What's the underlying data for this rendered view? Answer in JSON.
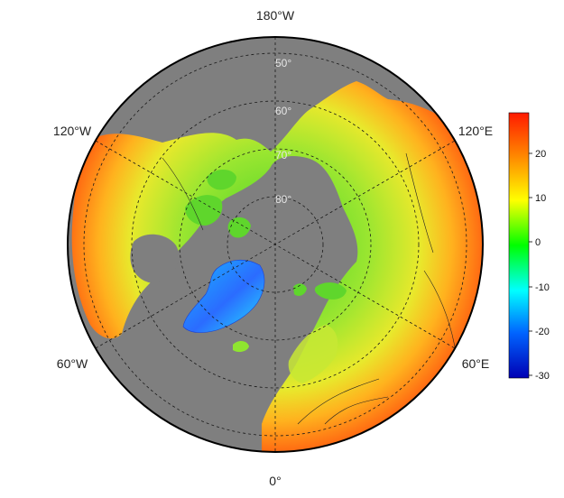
{
  "map": {
    "projection": "north-polar-stereographic",
    "ocean_color": "#7f7f7f",
    "outline_color": "#000000",
    "graticule_color": "#1a1a1a",
    "longitude_labels": [
      "180°W",
      "120°W",
      "120°E",
      "60°W",
      "60°E",
      "0°"
    ],
    "latitude_labels": [
      "50°",
      "60°",
      "70°",
      "80°"
    ]
  },
  "colorbar": {
    "ticks": [
      "20",
      "10",
      "0",
      "-10",
      "-20",
      "-30"
    ],
    "colors": [
      "#ff1a00",
      "#ff8c00",
      "#ffff00",
      "#00ff00",
      "#00ffff",
      "#0064ff",
      "#0000b4"
    ]
  }
}
